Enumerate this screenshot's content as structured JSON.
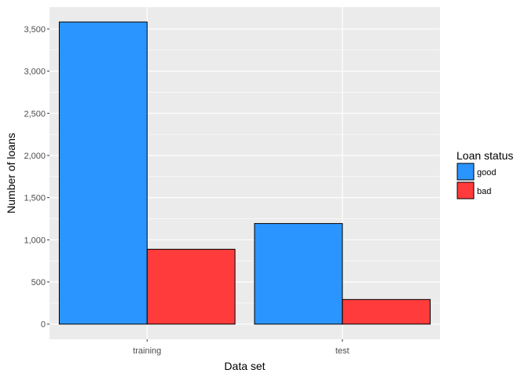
{
  "chart_data": {
    "type": "bar",
    "title": "",
    "xlabel": "Data set",
    "ylabel": "Number of loans",
    "categories": [
      "training",
      "test"
    ],
    "series": [
      {
        "name": "good",
        "values": [
          3583,
          1193
        ],
        "color": "#2b95ff"
      },
      {
        "name": "bad",
        "values": [
          888,
          292
        ],
        "color": "#ff3b3b"
      }
    ],
    "ylim": [
      -180,
      3760
    ],
    "yticks": [
      0,
      500,
      1000,
      1500,
      2000,
      2500,
      3000,
      3500
    ],
    "ytick_labels": [
      "0",
      "500",
      "1,000",
      "1,500",
      "2,000",
      "2,500",
      "3,000",
      "3,500"
    ],
    "grid": true,
    "background": "#ebebeb",
    "legend": {
      "title": "Loan status",
      "position": "right"
    }
  }
}
